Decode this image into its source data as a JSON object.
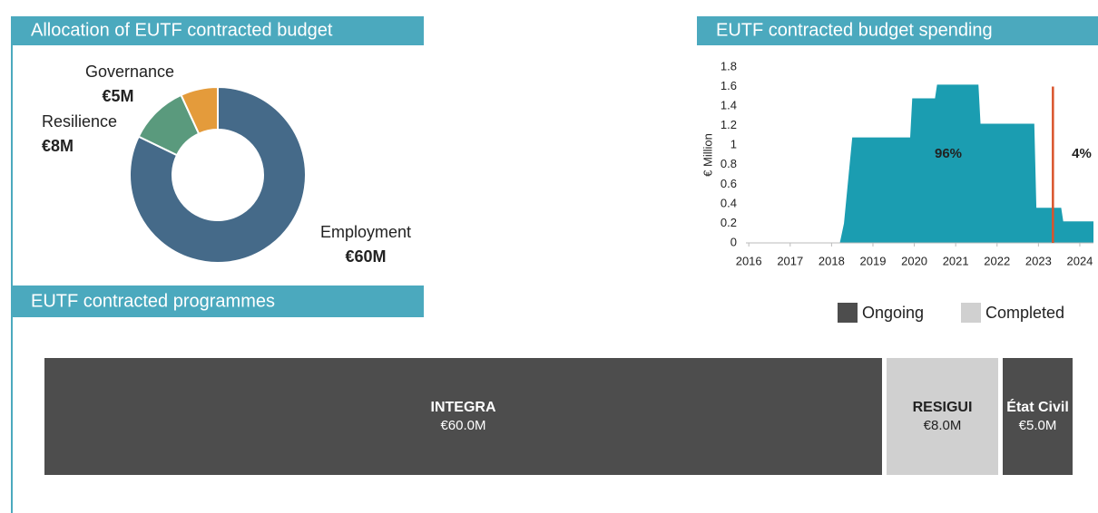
{
  "chart_data": [
    {
      "type": "donut",
      "title": "Allocation of EUTF contracted budget",
      "categories": [
        "Employment",
        "Resilience",
        "Governance"
      ],
      "values": [
        60,
        8,
        5
      ],
      "value_labels": [
        "€60M",
        "€8M",
        "€5M"
      ],
      "colors": [
        "#456a89",
        "#5a9a7d",
        "#e49b3b"
      ]
    },
    {
      "type": "area",
      "title": "EUTF contracted budget spending",
      "ylabel": "€ Million",
      "x": [
        2018.2,
        2018.3,
        2018.5,
        2019.9,
        2019.95,
        2020.5,
        2020.55,
        2021.55,
        2021.6,
        2022.9,
        2022.95,
        2023.55,
        2023.6,
        2024.33
      ],
      "series": [
        {
          "color": "#1b9db1",
          "values": [
            0,
            0.2,
            1.08,
            1.08,
            1.48,
            1.48,
            1.62,
            1.62,
            1.22,
            1.22,
            0.36,
            0.36,
            0.22,
            0.22
          ]
        }
      ],
      "xlim": [
        2015.93,
        2024.33
      ],
      "xticks": [
        2016,
        2017,
        2018,
        2019,
        2020,
        2021,
        2022,
        2023,
        2024
      ],
      "ylim": [
        0,
        1.8
      ],
      "yticks": [
        0,
        0.2,
        0.4,
        0.6,
        0.8,
        1,
        1.2,
        1.4,
        1.6,
        1.8
      ],
      "marker_line": {
        "x": 2023.35,
        "color": "#d9542c"
      },
      "annotations": [
        "96%",
        "4%"
      ]
    },
    {
      "type": "proportional-bar",
      "title": "EUTF contracted programmes",
      "categories": [
        "INTEGRA",
        "RESIGUI",
        "État Civil"
      ],
      "value_labels": [
        "€60.0M",
        "€8.0M",
        "€5.0M"
      ],
      "series": [
        {
          "name": "Ongoing",
          "color": "#4d4d4d",
          "values": [
            60,
            null,
            5
          ]
        },
        {
          "name": "Completed",
          "color": "#d0d0d0",
          "values": [
            null,
            8,
            null
          ]
        }
      ]
    }
  ]
}
